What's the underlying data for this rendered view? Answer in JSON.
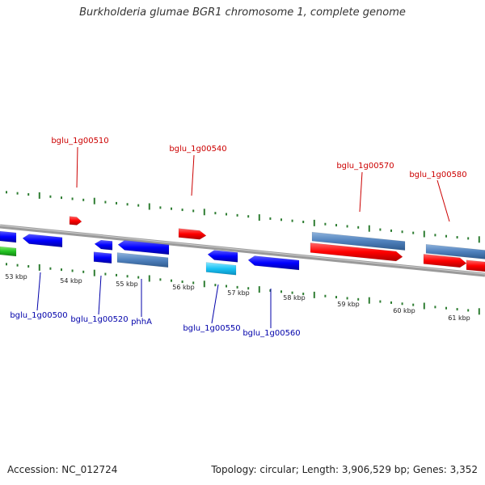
{
  "title": "Burkholderia glumae BGR1 chromosome 1, complete genome",
  "footer": {
    "accession": "Accession: NC_012724",
    "summary": "Topology: circular; Length: 3,906,529 bp; Genes: 3,352"
  },
  "colors": {
    "forward_gene": "#ff0000",
    "forward_cds": "#4f81bd",
    "reverse_gene": "#0000ff",
    "reverse_cds": "#4f81bd",
    "tick": "#2e7d32",
    "backbone": "#777777",
    "label_forward": "#cc0000",
    "label_reverse": "#0000aa"
  },
  "scale_labels": [
    "53 kbp",
    "54 kbp",
    "55 kbp",
    "56 kbp",
    "57 kbp",
    "58 kbp",
    "59 kbp",
    "60 kbp",
    "61 kbp"
  ],
  "gene_labels": {
    "forward": [
      "bglu_1g00510",
      "bglu_1g00540",
      "bglu_1g00570",
      "bglu_1g00580"
    ],
    "reverse": [
      "bglu_1g00500",
      "bglu_1g00520",
      "phhA",
      "bglu_1g00550",
      "bglu_1g00560"
    ]
  }
}
